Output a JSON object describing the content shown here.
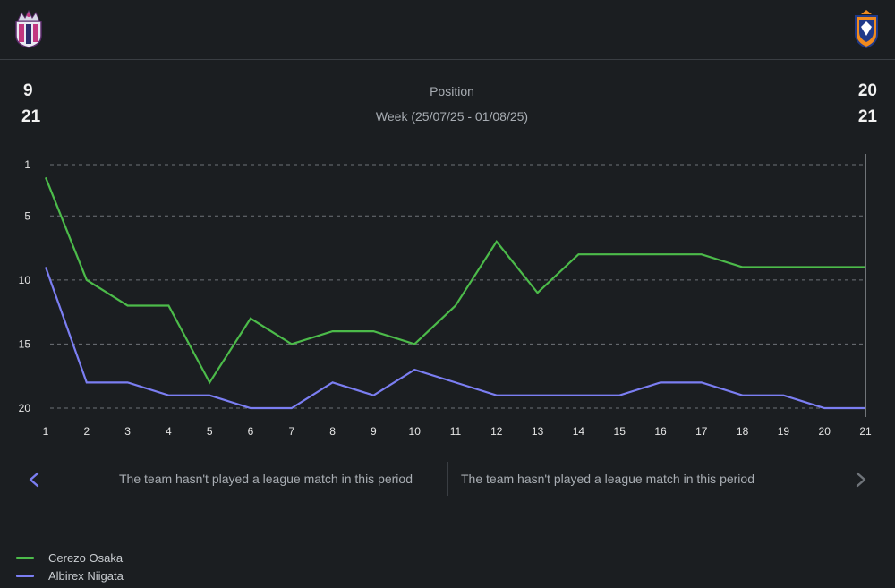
{
  "header": {
    "home_team_crest": "cerezo-osaka-crest-icon",
    "away_team_crest": "albirex-niigata-crest-icon",
    "home_values": [
      "9",
      "21"
    ],
    "away_values": [
      "20",
      "21"
    ],
    "title": "Position",
    "subtitle": "Week (25/07/25 - 01/08/25)"
  },
  "nav": {
    "left_message": "The team hasn't played a league match in this period",
    "right_message": "The team hasn't played a league match in this period",
    "prev_icon": "chevron-left-icon",
    "next_icon": "chevron-right-icon",
    "prev_color": "#7b7ef2",
    "next_color": "#6f747a"
  },
  "legend": [
    {
      "name": "Cerezo Osaka",
      "color": "#4cbb4a"
    },
    {
      "name": "Albirex Niigata",
      "color": "#7b7ef2"
    }
  ],
  "chart_data": {
    "type": "line",
    "x": [
      1,
      2,
      3,
      4,
      5,
      6,
      7,
      8,
      9,
      10,
      11,
      12,
      13,
      14,
      15,
      16,
      17,
      18,
      19,
      20,
      21
    ],
    "xticks": [
      "1",
      "2",
      "3",
      "4",
      "5",
      "6",
      "7",
      "8",
      "9",
      "10",
      "11",
      "12",
      "13",
      "14",
      "15",
      "16",
      "17",
      "18",
      "19",
      "20",
      "21"
    ],
    "yticks": [
      "1",
      "5",
      "10",
      "15",
      "20"
    ],
    "ytick_values": [
      1,
      5,
      10,
      15,
      20
    ],
    "ylim": [
      1,
      20
    ],
    "y_inverted": true,
    "grid": "horizontal-dashed",
    "highlight_x": 21,
    "series": [
      {
        "name": "Cerezo Osaka",
        "color": "#4cbb4a",
        "values": [
          2,
          10,
          12,
          12,
          18,
          13,
          15,
          14,
          14,
          15,
          12,
          7,
          11,
          8,
          8,
          8,
          8,
          9,
          9,
          9,
          9
        ]
      },
      {
        "name": "Albirex Niigata",
        "color": "#7b7ef2",
        "values": [
          9,
          18,
          18,
          19,
          19,
          20,
          20,
          18,
          19,
          17,
          18,
          19,
          19,
          19,
          19,
          18,
          18,
          19,
          19,
          20,
          20
        ]
      }
    ]
  }
}
